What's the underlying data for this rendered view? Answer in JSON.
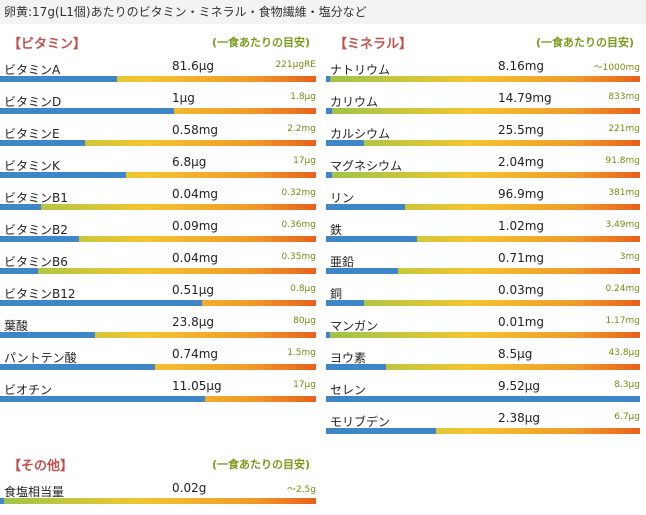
{
  "header": {
    "title": "卵黄:17g(L1個)あたりのビタミン・ミネラル・食物繊維・塩分など"
  },
  "vitamins": {
    "title": "【ビタミン】",
    "note": "(一食あたりの目安)",
    "items": [
      {
        "name": "ビタミンA",
        "value": "81.6μg",
        "target": "221μgRE",
        "level": 0.37
      },
      {
        "name": "ビタミンD",
        "value": "1μg",
        "target": "1.8μg",
        "level": 0.55
      },
      {
        "name": "ビタミンE",
        "value": "0.58mg",
        "target": "2.2mg",
        "level": 0.27
      },
      {
        "name": "ビタミンK",
        "value": "6.8μg",
        "target": "17μg",
        "level": 0.4
      },
      {
        "name": "ビタミンB1",
        "value": "0.04mg",
        "target": "0.32mg",
        "level": 0.13
      },
      {
        "name": "ビタミンB2",
        "value": "0.09mg",
        "target": "0.36mg",
        "level": 0.25
      },
      {
        "name": "ビタミンB6",
        "value": "0.04mg",
        "target": "0.35mg",
        "level": 0.12
      },
      {
        "name": "ビタミンB12",
        "value": "0.51μg",
        "target": "0.8μg",
        "level": 0.64
      },
      {
        "name": "葉酸",
        "value": "23.8μg",
        "target": "80μg",
        "level": 0.3
      },
      {
        "name": "パントテン酸",
        "value": "0.74mg",
        "target": "1.5mg",
        "level": 0.49
      },
      {
        "name": "ビオチン",
        "value": "11.05μg",
        "target": "17μg",
        "level": 0.65
      }
    ]
  },
  "minerals": {
    "title": "【ミネラル】",
    "note": "(一食あたりの目安)",
    "items": [
      {
        "name": "ナトリウム",
        "value": "8.16mg",
        "target": "〜1000mg",
        "level": 0.01
      },
      {
        "name": "カリウム",
        "value": "14.79mg",
        "target": "833mg",
        "level": 0.02
      },
      {
        "name": "カルシウム",
        "value": "25.5mg",
        "target": "221mg",
        "level": 0.12
      },
      {
        "name": "マグネシウム",
        "value": "2.04mg",
        "target": "91.8mg",
        "level": 0.02
      },
      {
        "name": "リン",
        "value": "96.9mg",
        "target": "381mg",
        "level": 0.25
      },
      {
        "name": "鉄",
        "value": "1.02mg",
        "target": "3.49mg",
        "level": 0.29
      },
      {
        "name": "亜鉛",
        "value": "0.71mg",
        "target": "3mg",
        "level": 0.23
      },
      {
        "name": "銅",
        "value": "0.03mg",
        "target": "0.24mg",
        "level": 0.12
      },
      {
        "name": "マンガン",
        "value": "0.01mg",
        "target": "1.17mg",
        "level": 0.01
      },
      {
        "name": "ヨウ素",
        "value": "8.5μg",
        "target": "43.8μg",
        "level": 0.19
      },
      {
        "name": "セレン",
        "value": "9.52μg",
        "target": "8.3μg",
        "level": 1.0
      },
      {
        "name": "モリブデン",
        "value": "2.38μg",
        "target": "6.7μg",
        "level": 0.35
      }
    ]
  },
  "others": {
    "title": "【その他】",
    "note": "(一食あたりの目安)",
    "items": [
      {
        "name": "食塩相当量",
        "value": "0.02g",
        "target": "〜2.5g",
        "level": 0.01
      }
    ]
  },
  "colors": {
    "accent_title": "#c0504d",
    "note": "#7a9a1a",
    "fill": "#3f86c8"
  }
}
